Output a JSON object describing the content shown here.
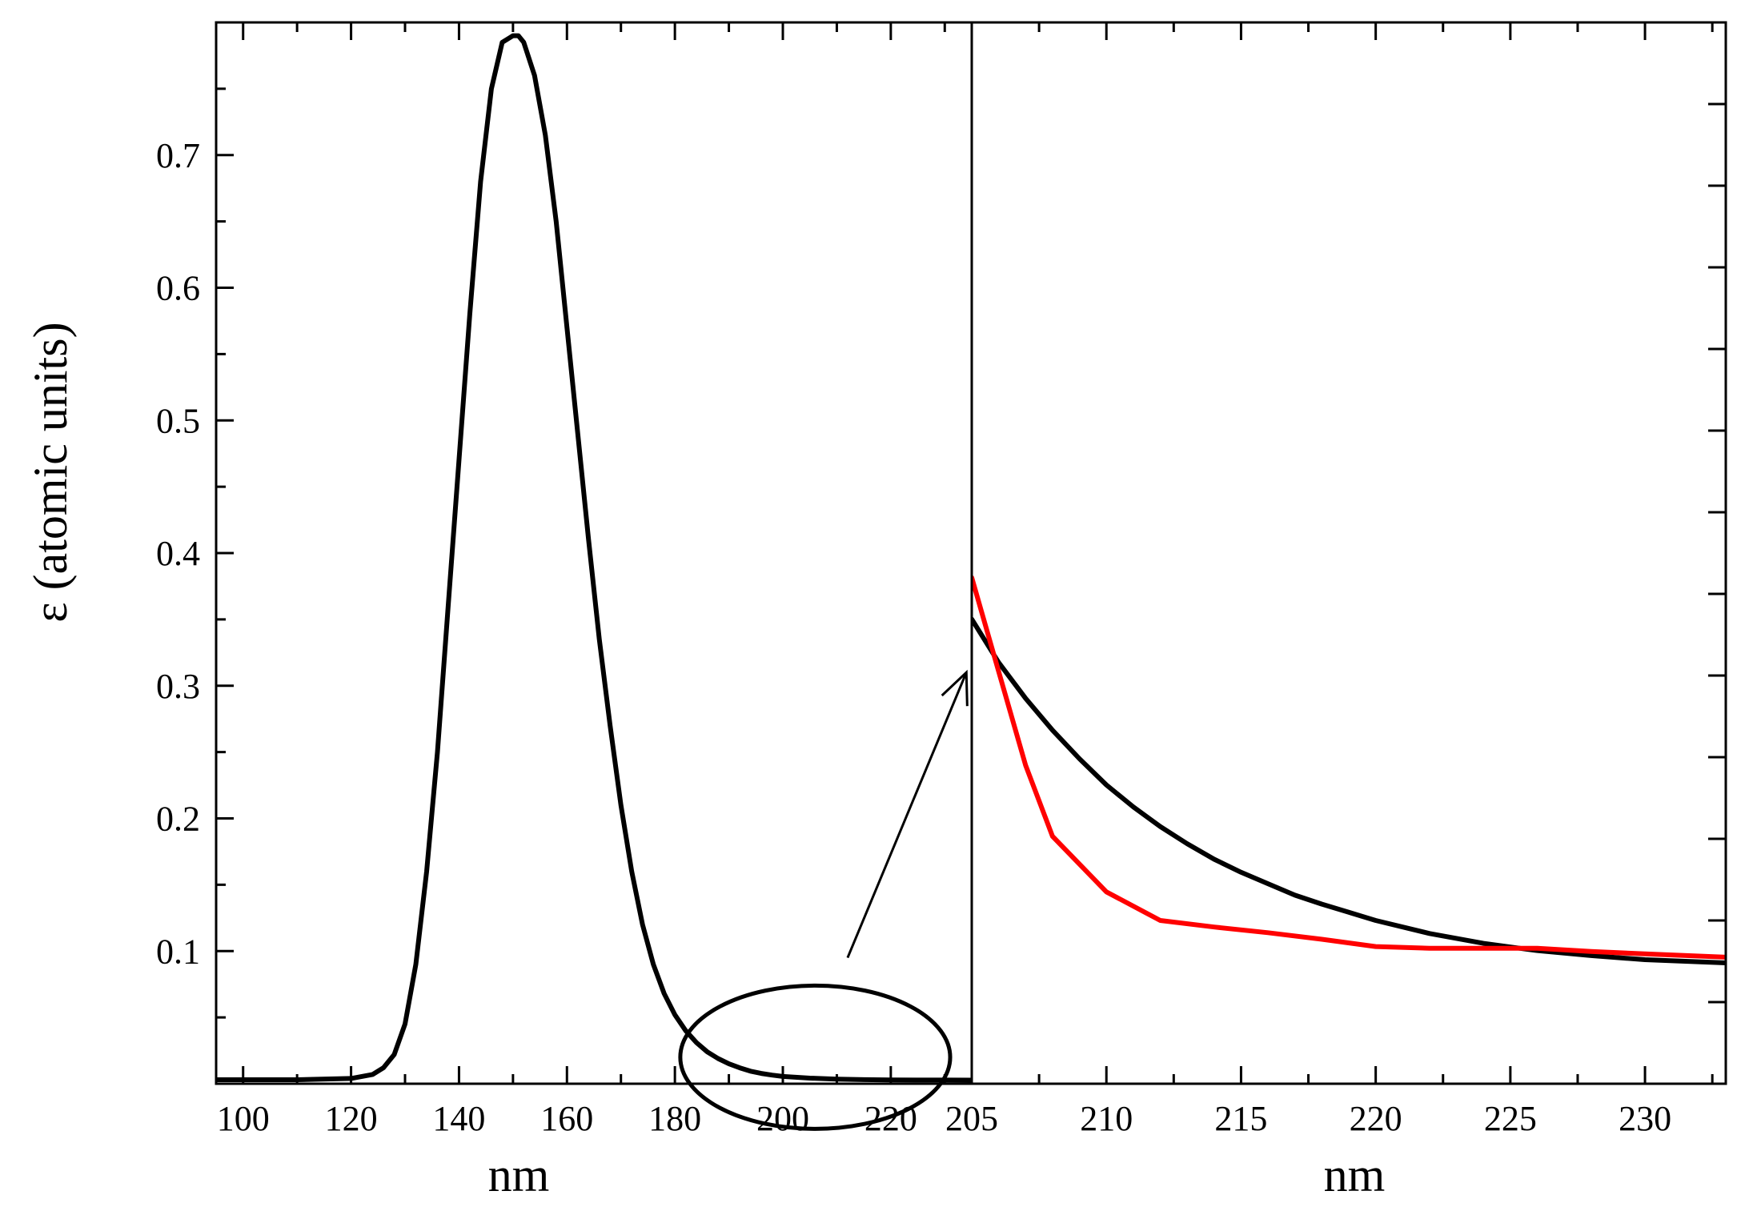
{
  "chart_data": [
    {
      "type": "line",
      "xlabel": "nm",
      "ylabel": "ε  (atomic units)",
      "xlim": [
        95,
        235
      ],
      "ylim": [
        0,
        0.8
      ],
      "x_ticks": [
        100,
        120,
        140,
        160,
        180,
        200,
        220
      ],
      "y_ticks": [
        0.1,
        0.2,
        0.3,
        0.4,
        0.5,
        0.6,
        0.7
      ],
      "x_tick_labels": [
        "100",
        "120",
        "140",
        "160",
        "180",
        "200",
        "220"
      ],
      "y_tick_labels": [
        "0.1",
        "0.2",
        "0.3",
        "0.4",
        "0.5",
        "0.6",
        "0.7"
      ],
      "grid": false,
      "series": [
        {
          "color": "#000000",
          "x": [
            95,
            100,
            110,
            120,
            124,
            126,
            128,
            130,
            132,
            134,
            136,
            138,
            140,
            142,
            144,
            146,
            148,
            150,
            151,
            152,
            154,
            156,
            158,
            160,
            162,
            164,
            166,
            168,
            170,
            172,
            174,
            176,
            178,
            180,
            182,
            184,
            186,
            188,
            190,
            192,
            194,
            196,
            198,
            200,
            205,
            210,
            215,
            220,
            225,
            230,
            235
          ],
          "y": [
            0.003,
            0.003,
            0.003,
            0.004,
            0.007,
            0.012,
            0.022,
            0.045,
            0.09,
            0.16,
            0.25,
            0.36,
            0.47,
            0.58,
            0.68,
            0.75,
            0.785,
            0.79,
            0.79,
            0.785,
            0.76,
            0.715,
            0.65,
            0.57,
            0.49,
            0.41,
            0.335,
            0.27,
            0.21,
            0.16,
            0.12,
            0.09,
            0.068,
            0.052,
            0.04,
            0.031,
            0.024,
            0.019,
            0.015,
            0.012,
            0.0095,
            0.0078,
            0.0065,
            0.0055,
            0.0042,
            0.0035,
            0.0031,
            0.0029,
            0.0028,
            0.0028,
            0.0027
          ]
        }
      ],
      "annotations": [
        {
          "type": "ellipse",
          "center": [
            206,
            0.02
          ],
          "radius_x": 25,
          "radius_y": 0.054,
          "color": "#000000"
        },
        {
          "type": "arrow",
          "from": [
            212,
            0.095
          ],
          "to": [
            234,
            0.31
          ],
          "color": "#000000"
        }
      ]
    },
    {
      "type": "line",
      "xlabel": "nm",
      "ylabel": "",
      "xlim": [
        205,
        233
      ],
      "ylim": [
        0,
        13
      ],
      "x_ticks": [
        205,
        210,
        215,
        220,
        225,
        230
      ],
      "x_tick_labels": [
        "205",
        "210",
        "215",
        "220",
        "225",
        "230"
      ],
      "y_ticks": [
        1,
        2,
        3,
        4,
        5,
        6,
        7,
        8,
        9,
        10,
        11,
        12
      ],
      "y_tick_labels": [],
      "grid": false,
      "series": [
        {
          "color": "#000000",
          "x": [
            205,
            206,
            207,
            208,
            209,
            210,
            211,
            212,
            213,
            214,
            215,
            216,
            217,
            218,
            219,
            220,
            222,
            224,
            226,
            228,
            230,
            233
          ],
          "y": [
            5.69,
            5.16,
            4.72,
            4.33,
            3.98,
            3.66,
            3.39,
            3.15,
            2.94,
            2.75,
            2.59,
            2.45,
            2.31,
            2.2,
            2.1,
            2.0,
            1.84,
            1.72,
            1.63,
            1.57,
            1.52,
            1.48
          ]
        },
        {
          "color": "#ff0000",
          "x": [
            205,
            206,
            207,
            208,
            210,
            212,
            214,
            216,
            218,
            220,
            222,
            224,
            226,
            228,
            230,
            233
          ],
          "y": [
            6.2,
            5.05,
            3.9,
            3.03,
            2.35,
            2.0,
            1.92,
            1.85,
            1.77,
            1.68,
            1.66,
            1.66,
            1.66,
            1.62,
            1.59,
            1.55
          ]
        }
      ]
    }
  ]
}
